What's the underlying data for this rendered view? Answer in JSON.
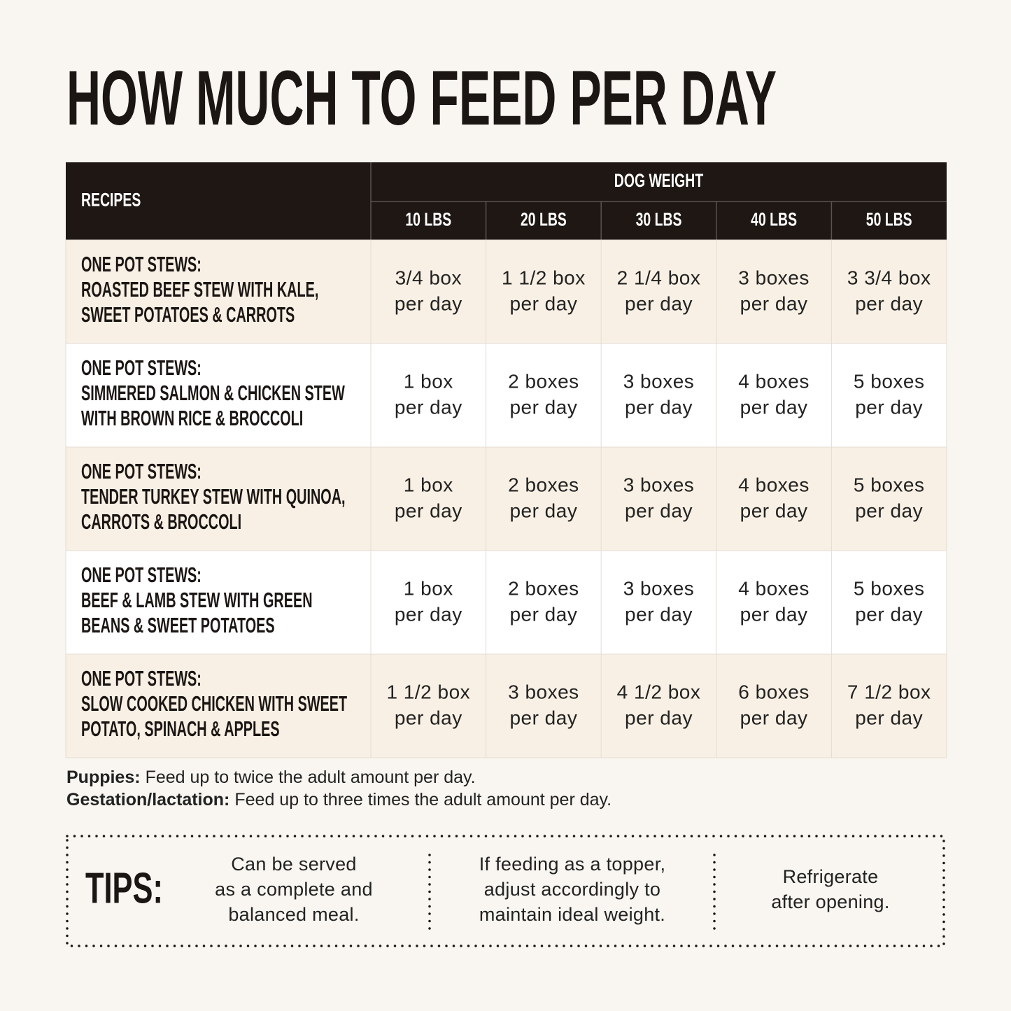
{
  "title": "HOW MUCH TO FEED PER DAY",
  "table": {
    "header": {
      "recipes": "RECIPES",
      "dog_weight": "DOG WEIGHT",
      "weights": [
        "10 LBS",
        "20 LBS",
        "30 LBS",
        "40 LBS",
        "50 LBS"
      ]
    },
    "rows": [
      {
        "recipe": [
          "ONE POT STEWS:",
          "ROASTED BEEF STEW WITH KALE,",
          "SWEET POTATOES & CARROTS"
        ],
        "amounts": [
          [
            "3/4 box",
            "per day"
          ],
          [
            "1 1/2 box",
            "per day"
          ],
          [
            "2 1/4 box",
            "per day"
          ],
          [
            "3 boxes",
            "per day"
          ],
          [
            "3 3/4 box",
            "per day"
          ]
        ]
      },
      {
        "recipe": [
          "ONE POT STEWS:",
          "SIMMERED SALMON & CHICKEN STEW",
          "WITH BROWN RICE & BROCCOLI"
        ],
        "amounts": [
          [
            "1 box",
            "per day"
          ],
          [
            "2 boxes",
            "per day"
          ],
          [
            "3 boxes",
            "per day"
          ],
          [
            "4 boxes",
            "per day"
          ],
          [
            "5 boxes",
            "per day"
          ]
        ]
      },
      {
        "recipe": [
          "ONE POT STEWS:",
          "TENDER TURKEY STEW WITH QUINOA,",
          "CARROTS & BROCCOLI"
        ],
        "amounts": [
          [
            "1 box",
            "per day"
          ],
          [
            "2 boxes",
            "per day"
          ],
          [
            "3 boxes",
            "per day"
          ],
          [
            "4 boxes",
            "per day"
          ],
          [
            "5 boxes",
            "per day"
          ]
        ]
      },
      {
        "recipe": [
          "ONE POT STEWS:",
          "BEEF & LAMB STEW WITH GREEN",
          "BEANS & SWEET POTATOES"
        ],
        "amounts": [
          [
            "1 box",
            "per day"
          ],
          [
            "2 boxes",
            "per day"
          ],
          [
            "3 boxes",
            "per day"
          ],
          [
            "4 boxes",
            "per day"
          ],
          [
            "5 boxes",
            "per day"
          ]
        ]
      },
      {
        "recipe": [
          "ONE POT STEWS:",
          "SLOW COOKED CHICKEN WITH SWEET",
          "POTATO, SPINACH & APPLES"
        ],
        "amounts": [
          [
            "1 1/2 box",
            "per day"
          ],
          [
            "3 boxes",
            "per day"
          ],
          [
            "4 1/2 box",
            "per day"
          ],
          [
            "6 boxes",
            "per day"
          ],
          [
            "7 1/2 box",
            "per day"
          ]
        ]
      }
    ]
  },
  "notes": [
    {
      "label": "Puppies:",
      "text": "Feed up to twice the adult amount per day."
    },
    {
      "label": "Gestation/lactation:",
      "text": "Feed up to three times the adult amount per day."
    }
  ],
  "tips": {
    "label": "TIPS:",
    "items": [
      [
        "Can be served",
        "as a complete and",
        "balanced meal."
      ],
      [
        "If feeding as a topper,",
        "adjust accordingly to",
        "maintain ideal weight."
      ],
      [
        "Refrigerate",
        "after opening."
      ]
    ]
  }
}
